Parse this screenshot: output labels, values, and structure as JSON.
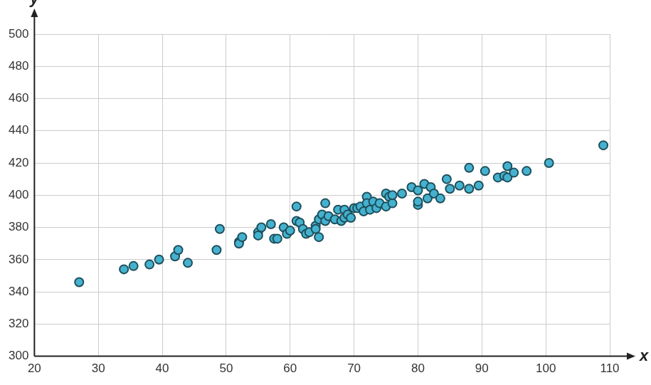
{
  "chart_data": {
    "type": "scatter",
    "x_label": "x",
    "y_label": "y",
    "x": [
      27,
      34,
      35.5,
      38,
      39.5,
      42,
      42.5,
      44,
      48.5,
      49,
      52,
      52,
      52.5,
      55,
      55,
      55.5,
      57,
      57.5,
      58,
      59,
      59.5,
      60,
      61,
      61,
      61.5,
      62,
      62.5,
      63,
      64,
      64,
      64.5,
      64.5,
      65,
      65.5,
      65.5,
      66,
      67,
      67.5,
      68,
      68.5,
      68.5,
      69,
      69.5,
      70,
      70.5,
      71,
      71.5,
      72,
      72,
      72.5,
      73,
      73.5,
      74,
      75,
      75,
      75.5,
      76,
      76,
      77.5,
      79,
      80,
      80,
      80,
      81,
      81.5,
      82,
      82.5,
      83.5,
      84.5,
      85,
      86.5,
      88,
      88,
      89.5,
      90.5,
      92.5,
      93.5,
      94,
      94,
      95,
      97,
      100.5,
      109
    ],
    "values": [
      346,
      354,
      356,
      357,
      360,
      362,
      366,
      358,
      366,
      379,
      371,
      370,
      374,
      377,
      375,
      380,
      382,
      373,
      373,
      380,
      376,
      378,
      393,
      384,
      383,
      379,
      376,
      377,
      381,
      379,
      374,
      385,
      388,
      395,
      384,
      387,
      385,
      391,
      384,
      391,
      386,
      388,
      386,
      392,
      392,
      393,
      390,
      399,
      395,
      391,
      396,
      392,
      395,
      401,
      393,
      399,
      395,
      400,
      401,
      405,
      403,
      394,
      396,
      407,
      398,
      405,
      401,
      398,
      410,
      404,
      406,
      417,
      404,
      406,
      415,
      411,
      412,
      418,
      411,
      414,
      415,
      420,
      431
    ],
    "color": "#44b2cf",
    "marker": "circle",
    "xlim": [
      20,
      110
    ],
    "xticks": [
      20,
      30,
      40,
      50,
      60,
      70,
      80,
      90,
      100,
      110
    ],
    "ylim": [
      300,
      500
    ],
    "yticks": [
      300,
      320,
      340,
      360,
      380,
      400,
      420,
      440,
      460,
      480,
      500
    ],
    "grid": true
  }
}
